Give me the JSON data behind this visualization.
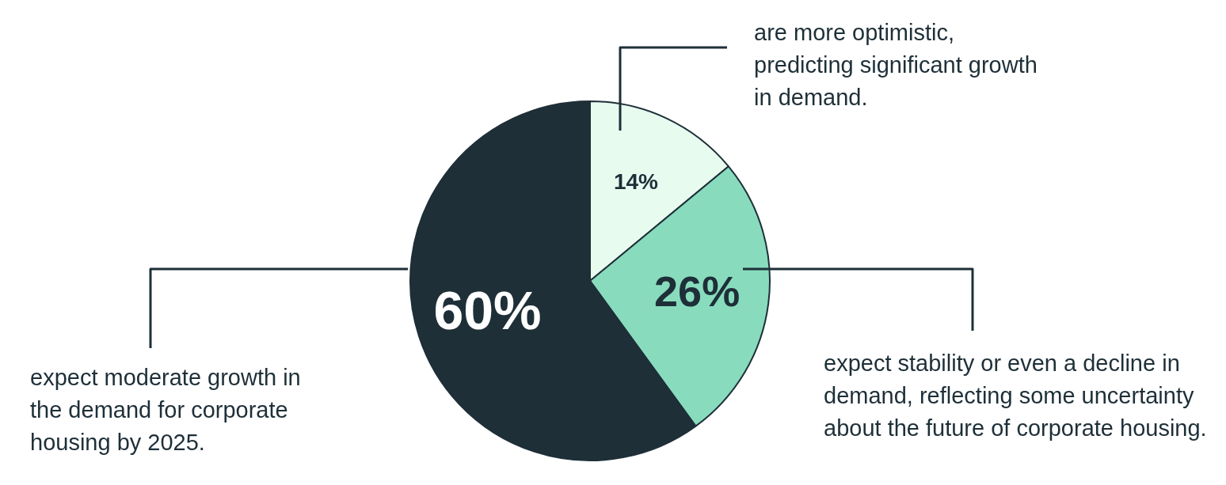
{
  "chart_data": {
    "type": "pie",
    "categories": [
      "are more optimistic, predicting significant growth in demand.",
      "expect stability or even a decline in demand, reflecting some uncertainty about the future of corporate housing.",
      "expect moderate growth in the demand for corporate housing by 2025."
    ],
    "values": [
      14,
      26,
      60
    ],
    "colors": [
      "#e8fbef",
      "#88dcbd",
      "#1e2f38"
    ],
    "value_labels": [
      "14%",
      "26%",
      "60%"
    ],
    "legend": false
  }
}
